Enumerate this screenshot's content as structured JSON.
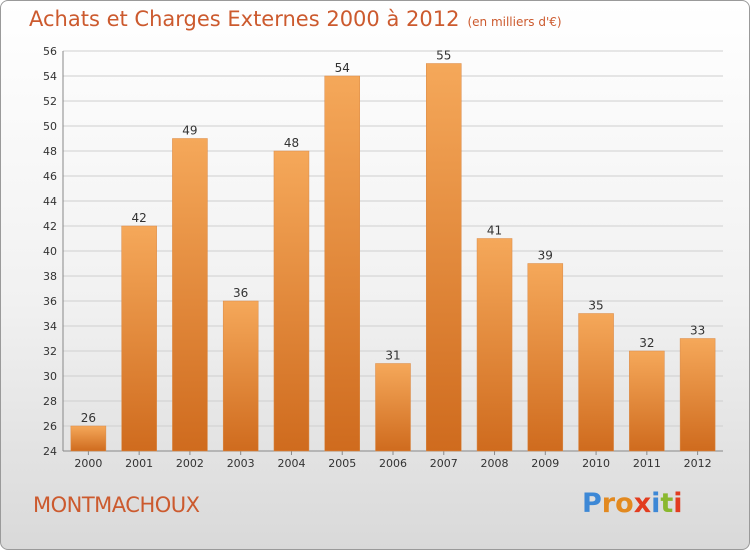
{
  "title": "Achats et Charges Externes 2000 à 2012",
  "subtitle": "(en milliers d'€)",
  "commune": "MONTMACHOUX",
  "brand": {
    "letters": [
      "P",
      "r",
      "o",
      "x",
      "i",
      "t",
      "i"
    ],
    "colors": [
      "#3d88d6",
      "#e2891f",
      "#e2891f",
      "#e23c1f",
      "#3d88d6",
      "#8ab82f",
      "#e23c1f"
    ]
  },
  "colors": {
    "accent": "#cc5a2e",
    "bar_light": "#f5a85a",
    "bar_dark": "#cf6b1e",
    "grid": "#cfcfcf"
  },
  "chart_data": {
    "type": "bar",
    "categories": [
      "2000",
      "2001",
      "2002",
      "2003",
      "2004",
      "2005",
      "2006",
      "2007",
      "2008",
      "2009",
      "2010",
      "2011",
      "2012"
    ],
    "values": [
      26,
      42,
      49,
      36,
      48,
      54,
      31,
      55,
      41,
      39,
      35,
      32,
      33
    ],
    "ylim": [
      24,
      56
    ],
    "yticks": [
      24,
      26,
      28,
      30,
      32,
      34,
      36,
      38,
      40,
      42,
      44,
      46,
      48,
      50,
      52,
      54,
      56
    ],
    "grid": true,
    "data_labels": [
      "26",
      "42",
      "49",
      "36",
      "48",
      "54",
      "31",
      "55",
      "41",
      "39",
      "35",
      "32",
      "33"
    ]
  }
}
